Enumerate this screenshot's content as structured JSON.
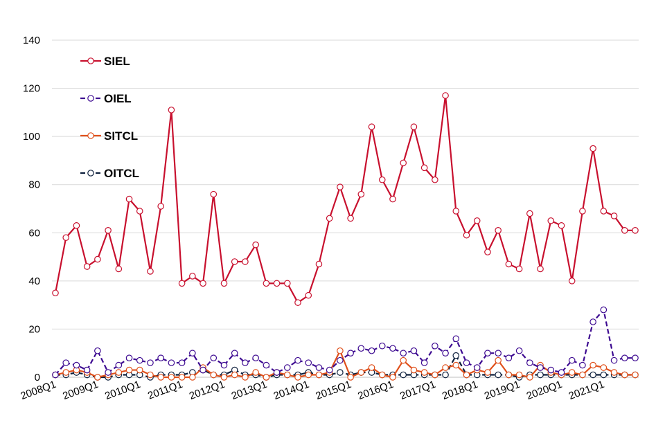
{
  "chart_data": {
    "type": "line",
    "title": "",
    "xlabel": "",
    "ylabel": "",
    "ylim": [
      0,
      140
    ],
    "yticks": [
      0,
      20,
      40,
      60,
      80,
      100,
      120,
      140
    ],
    "grid": true,
    "legend_position": "top-left",
    "x": [
      "2008Q1",
      "2008Q2",
      "2008Q3",
      "2008Q4",
      "2009Q1",
      "2009Q2",
      "2009Q3",
      "2009Q4",
      "2010Q1",
      "2010Q2",
      "2010Q3",
      "2010Q4",
      "2011Q1",
      "2011Q2",
      "2011Q3",
      "2011Q4",
      "2012Q1",
      "2012Q2",
      "2012Q3",
      "2012Q4",
      "2013Q1",
      "2013Q2",
      "2013Q3",
      "2013Q4",
      "2014Q1",
      "2014Q2",
      "2014Q3",
      "2014Q4",
      "2015Q1",
      "2015Q2",
      "2015Q3",
      "2015Q4",
      "2016Q1",
      "2016Q2",
      "2016Q3",
      "2016Q4",
      "2017Q1",
      "2017Q2",
      "2017Q3",
      "2017Q4",
      "2018Q1",
      "2018Q2",
      "2018Q3",
      "2018Q4",
      "2019Q1",
      "2019Q2",
      "2019Q3",
      "2019Q4",
      "2020Q1",
      "2020Q2",
      "2020Q3",
      "2020Q4",
      "2021Q1",
      "2021Q2",
      "2021Q3",
      "2021Q4"
    ],
    "x_tick_labels": [
      "2008Q1",
      "2009Q1",
      "2010Q1",
      "2011Q1",
      "2012Q1",
      "2013Q1",
      "2014Q1",
      "2015Q1",
      "2016Q1",
      "2017Q1",
      "2018Q1",
      "2019Q1",
      "2020Q1",
      "2021Q1"
    ],
    "series": [
      {
        "name": "SIEL",
        "color": "#c8102e",
        "dash": "solid",
        "values": [
          35,
          58,
          63,
          46,
          49,
          61,
          45,
          74,
          69,
          44,
          71,
          111,
          39,
          42,
          39,
          76,
          39,
          48,
          48,
          55,
          39,
          39,
          39,
          31,
          34,
          47,
          66,
          79,
          66,
          76,
          104,
          82,
          74,
          89,
          104,
          87,
          82,
          117,
          69,
          59,
          65,
          52,
          61,
          47,
          45,
          68,
          45,
          65,
          63,
          40,
          69,
          95,
          69,
          67,
          61,
          61
        ]
      },
      {
        "name": "OIEL",
        "color": "#3d0a91",
        "dash": "dashed",
        "values": [
          1,
          6,
          5,
          3,
          11,
          2,
          5,
          8,
          7,
          6,
          8,
          6,
          6,
          10,
          3,
          8,
          5,
          10,
          6,
          8,
          5,
          2,
          4,
          7,
          6,
          4,
          3,
          7,
          10,
          12,
          11,
          13,
          12,
          10,
          11,
          6,
          13,
          10,
          16,
          6,
          4,
          10,
          10,
          8,
          11,
          6,
          4,
          3,
          2,
          7,
          5,
          23,
          28,
          7,
          8,
          8
        ]
      },
      {
        "name": "SITCL",
        "color": "#e0501b",
        "dash": "solid",
        "values": [
          1,
          2,
          3,
          2,
          0,
          1,
          2,
          3,
          3,
          1,
          0,
          0,
          0,
          0,
          4,
          1,
          0,
          1,
          0,
          2,
          0,
          2,
          1,
          0,
          1,
          1,
          2,
          11,
          0,
          2,
          4,
          1,
          0,
          7,
          3,
          2,
          1,
          4,
          5,
          1,
          3,
          2,
          7,
          1,
          1,
          0,
          5,
          2,
          1,
          2,
          1,
          5,
          4,
          2,
          1,
          1
        ]
      },
      {
        "name": "OITCL",
        "color": "#0d1f3c",
        "dash": "dashed",
        "values": [
          1,
          1,
          2,
          1,
          0,
          0,
          1,
          1,
          1,
          0,
          1,
          1,
          1,
          2,
          3,
          1,
          1,
          3,
          1,
          1,
          0,
          1,
          1,
          1,
          2,
          1,
          1,
          2,
          1,
          2,
          2,
          1,
          1,
          1,
          1,
          1,
          1,
          1,
          9,
          1,
          1,
          1,
          1,
          1,
          0,
          1,
          1,
          1,
          1,
          1,
          1,
          1,
          1,
          1,
          1,
          1
        ]
      }
    ]
  }
}
